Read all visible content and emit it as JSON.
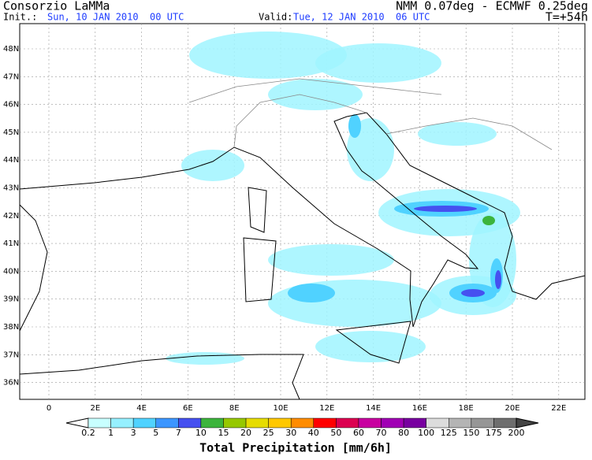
{
  "header": {
    "title": "Consorzio LaMMa",
    "init_label": "Init.:",
    "init": "Sun, 10 JAN 2010  00 UTC",
    "valid_label": "Valid:",
    "valid": "Tue, 12 JAN 2010  06 UTC",
    "model": "NMM 0.07deg - ECMWF 0.25deg",
    "step": "T=+54h"
  },
  "map": {
    "lat_labels": [
      "48N",
      "47N",
      "46N",
      "45N",
      "44N",
      "43N",
      "42N",
      "41N",
      "40N",
      "39N",
      "38N",
      "37N",
      "36N"
    ],
    "lon_labels": [
      "0",
      "2E",
      "4E",
      "6E",
      "8E",
      "10E",
      "12E",
      "14E",
      "16E",
      "18E",
      "20E",
      "22E"
    ]
  },
  "colorbar": {
    "labels": [
      "0.2",
      "1",
      "3",
      "5",
      "7",
      "10",
      "15",
      "20",
      "25",
      "30",
      "40",
      "50",
      "60",
      "70",
      "80",
      "100",
      "125",
      "150",
      "175",
      "200"
    ],
    "colors": [
      "#c8ffff",
      "#96f0ff",
      "#50d2ff",
      "#3c96ff",
      "#4650f0",
      "#3cb43c",
      "#96c800",
      "#e6dc00",
      "#ffc800",
      "#ff8c00",
      "#ff0000",
      "#dc0050",
      "#c800a0",
      "#a000b4",
      "#7800a0",
      "#dcdcdc",
      "#b4b4b4",
      "#969696",
      "#6e6e6e"
    ],
    "title": "Total Precipitation [mm/6h]"
  }
}
